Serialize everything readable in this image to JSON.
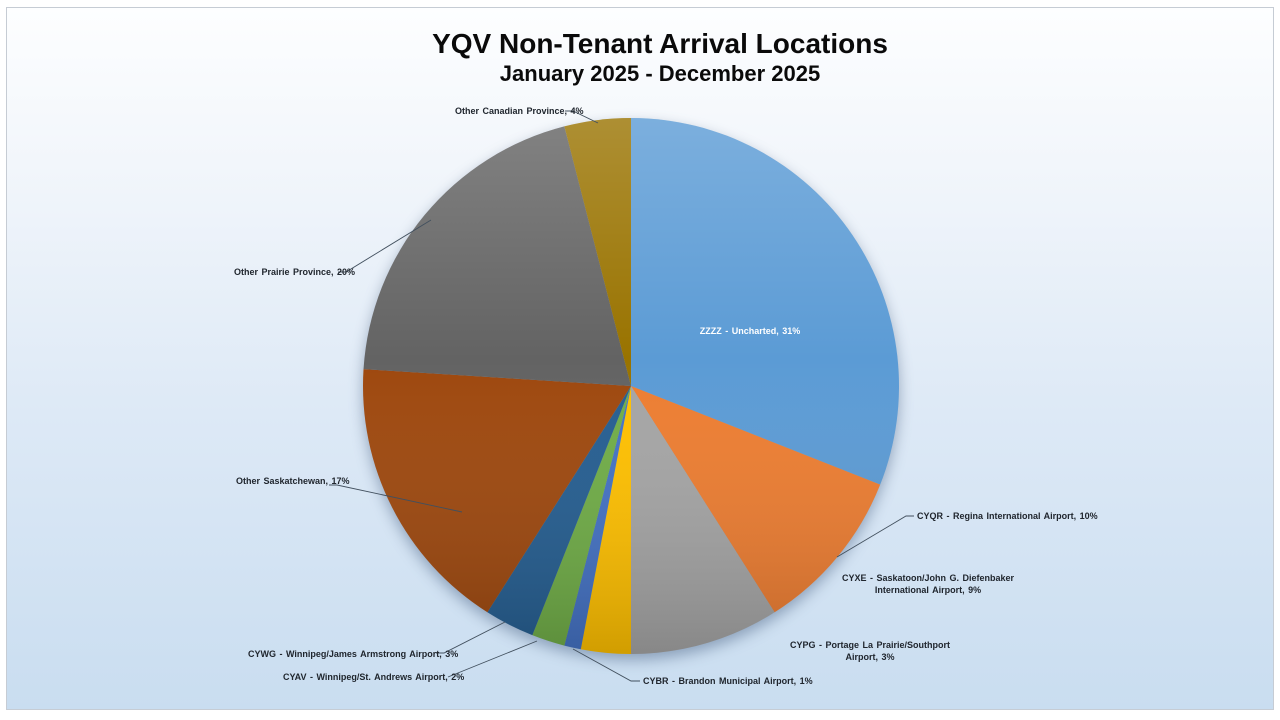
{
  "slide": {
    "title": "YQV Non-Tenant Arrival Locations",
    "subtitle": "January 2025 - December  2025"
  },
  "chart_data": {
    "type": "pie",
    "title": "YQV Non-Tenant Arrival Locations",
    "subtitle": "January 2025 - December 2025",
    "unit": "%",
    "start_angle_deg": 0,
    "direction": "clockwise",
    "legend": "none",
    "label_style": "category name + percentage, outside with leader lines (largest slice labeled inside)",
    "slices": [
      {
        "label": "ZZZZ - Uncharted",
        "value": 31,
        "display_lines": [
          "ZZZZ - Uncharted, 31%"
        ],
        "color": "#5B9BD5"
      },
      {
        "label": "CYQR - Regina International Airport",
        "value": 10,
        "display_lines": [
          "CYQR - Regina International Airport, 10%"
        ],
        "color": "#ED7D31"
      },
      {
        "label": "CYXE - Saskatoon/John G. Diefenbaker International Airport",
        "value": 9,
        "display_lines": [
          "CYXE - Saskatoon/John G. Diefenbaker",
          "International Airport, 9%"
        ],
        "color": "#A5A5A5"
      },
      {
        "label": "CYPG - Portage La Prairie/Southport Airport",
        "value": 3,
        "display_lines": [
          "CYPG - Portage La Prairie/Southport",
          "Airport, 3%"
        ],
        "color": "#FFC000"
      },
      {
        "label": "CYBR - Brandon Municipal Airport",
        "value": 1,
        "display_lines": [
          "CYBR - Brandon Municipal Airport, 1%"
        ],
        "color": "#4472C4"
      },
      {
        "label": "CYAV - Winnipeg/St. Andrews Airport",
        "value": 2,
        "display_lines": [
          "CYAV - Winnipeg/St. Andrews Airport, 2%"
        ],
        "color": "#70AD47"
      },
      {
        "label": "CYWG - Winnipeg/James Armstrong Airport",
        "value": 3,
        "display_lines": [
          "CYWG - Winnipeg/James Armstrong Airport, 3%"
        ],
        "color": "#255E91"
      },
      {
        "label": "Other Saskatchewan",
        "value": 17,
        "display_lines": [
          "Other Saskatchewan, 17%"
        ],
        "color": "#9E480E"
      },
      {
        "label": "Other Prairie Province",
        "value": 20,
        "display_lines": [
          "Other Prairie Province, 20%"
        ],
        "color": "#636363"
      },
      {
        "label": "Other Canadian Province",
        "value": 4,
        "display_lines": [
          "Other Canadian Province, 4%"
        ],
        "color": "#997300"
      }
    ]
  }
}
